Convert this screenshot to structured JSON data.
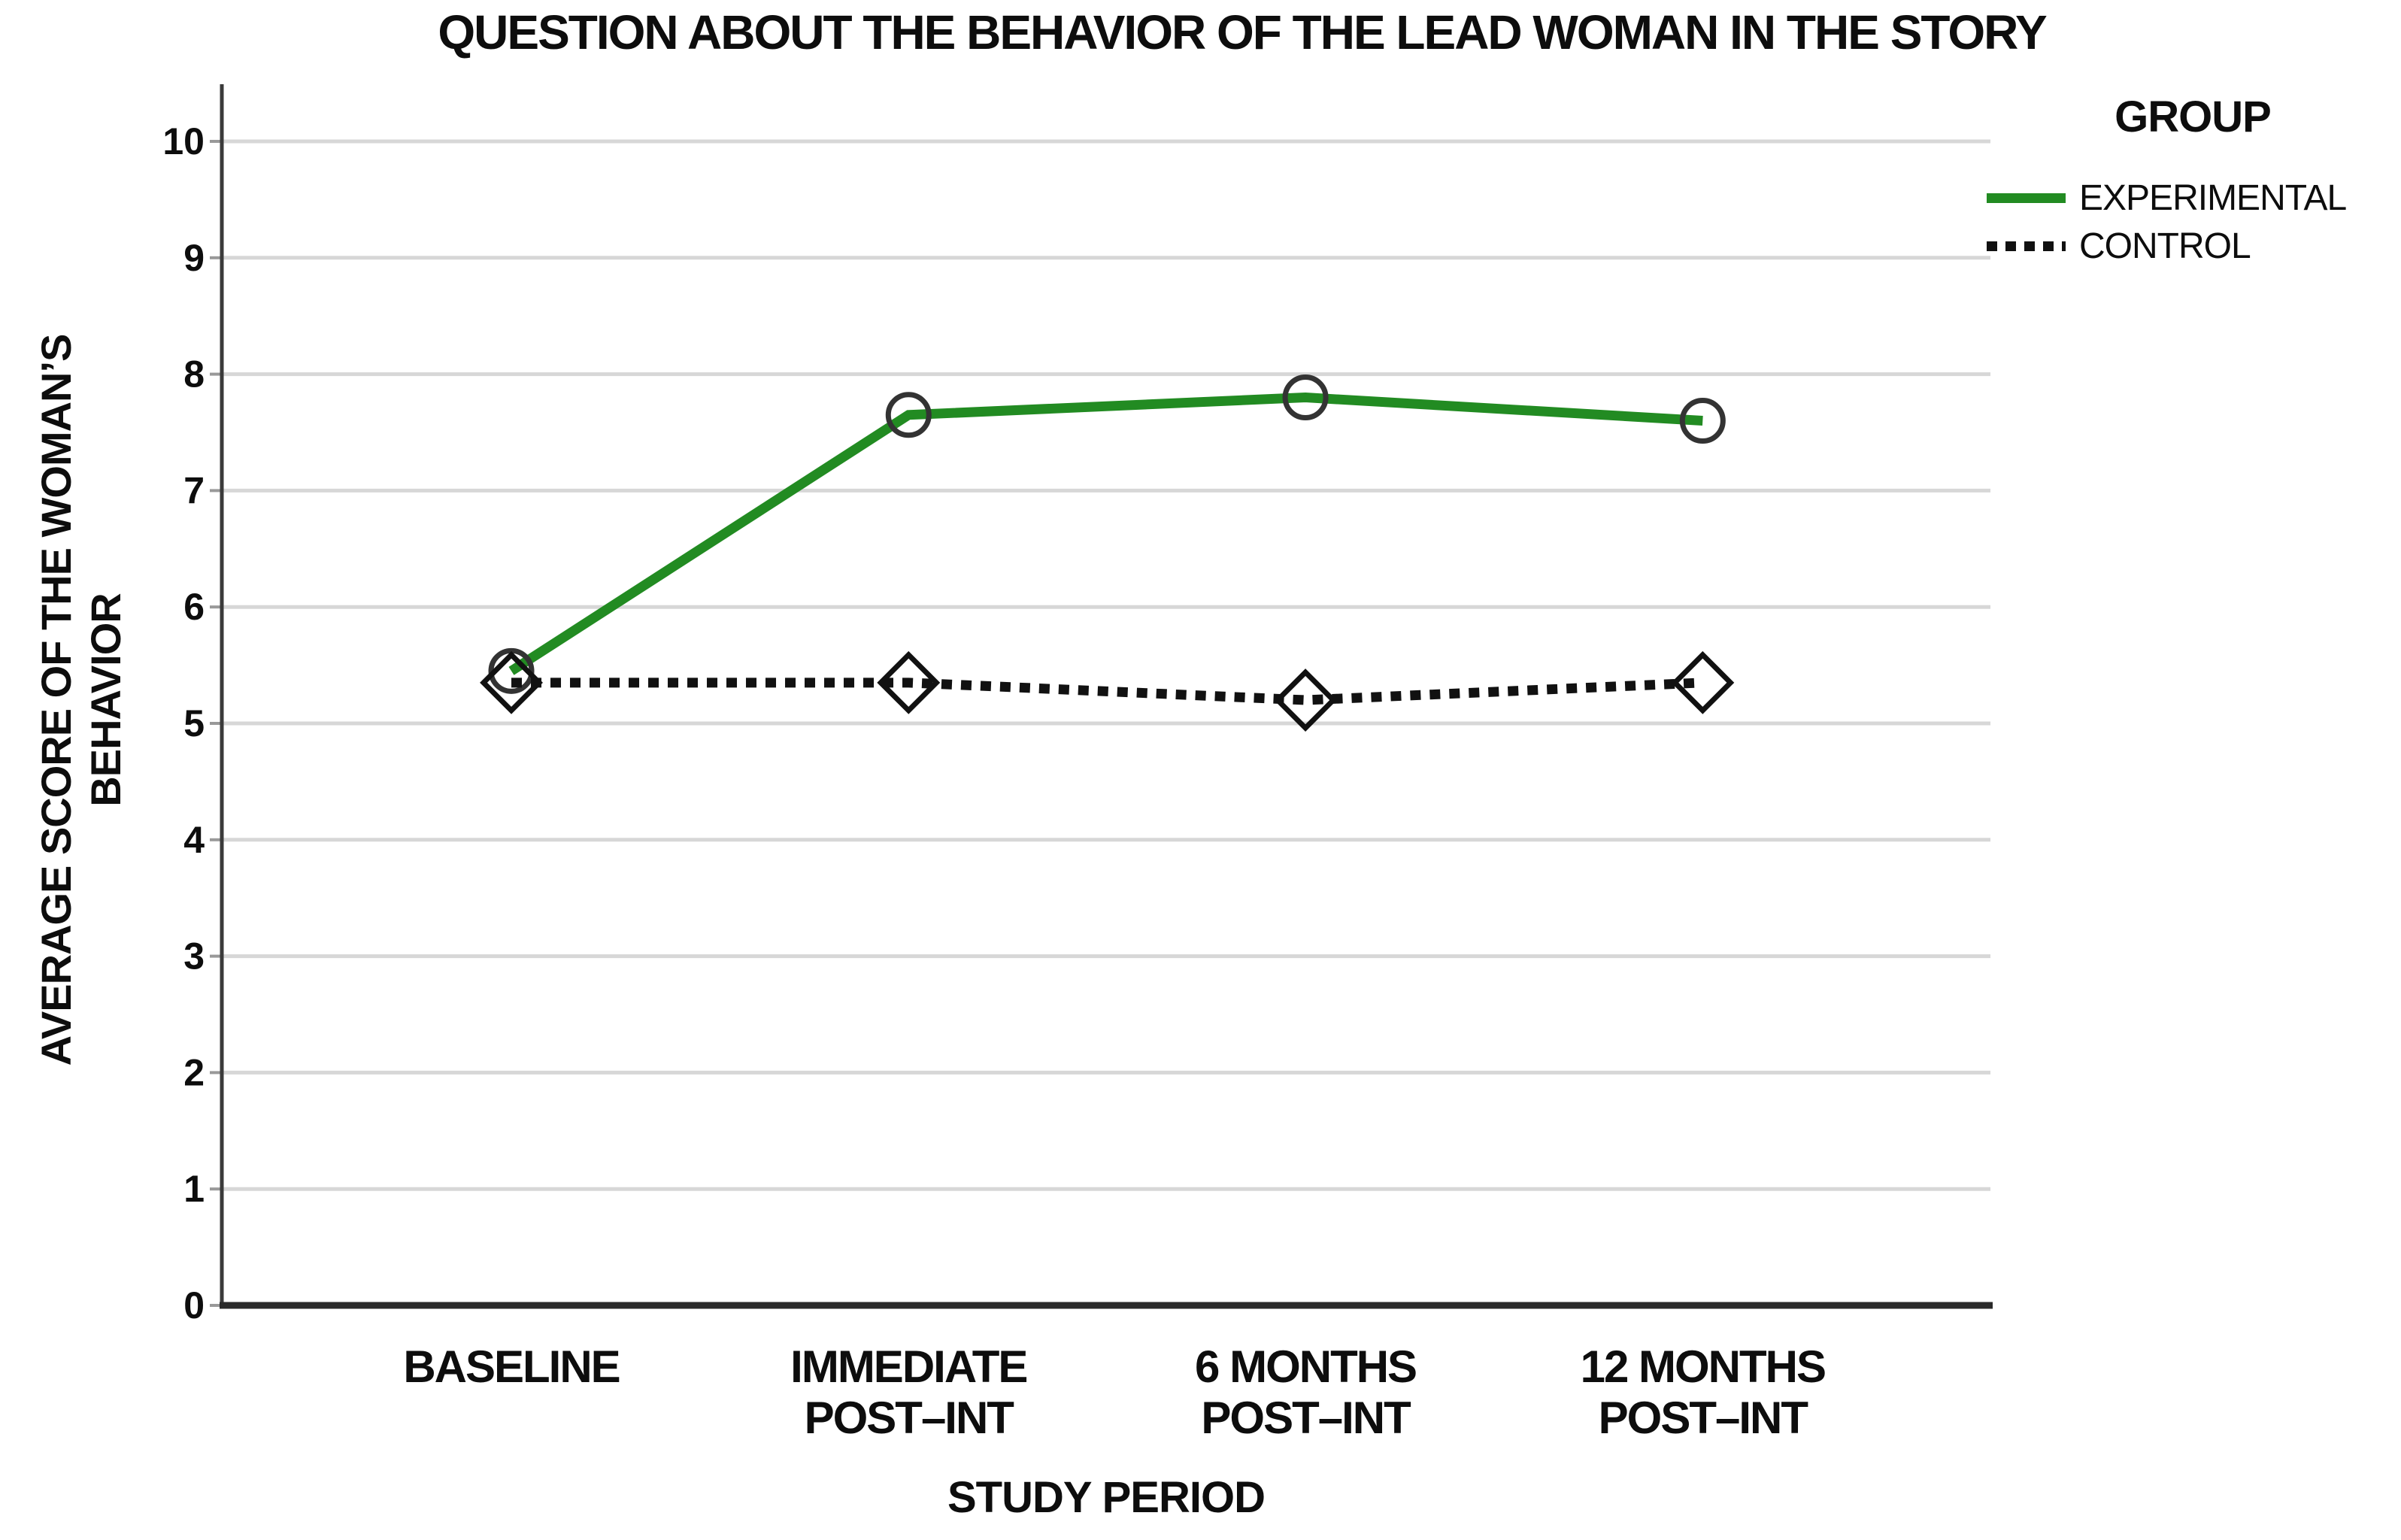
{
  "title": "QUESTION ABOUT THE BEHAVIOR OF THE LEAD WOMAN IN THE STORY",
  "axes": {
    "x_title": "STUDY PERIOD",
    "y_title_lines": [
      "AVERAGE SCORE OF THE WOMAN’S",
      "BEHAVIOR"
    ]
  },
  "legend": {
    "title": "GROUP",
    "items": [
      {
        "label": "EXPERIMENTAL",
        "color": "#228B22",
        "style": "solid"
      },
      {
        "label": "CONTROL",
        "color": "#111111",
        "style": "dotted"
      }
    ]
  },
  "chart_data": {
    "type": "line",
    "title": "QUESTION ABOUT THE BEHAVIOR OF THE LEAD WOMAN IN THE STORY",
    "xlabel": "STUDY PERIOD",
    "ylabel": "AVERAGE SCORE OF THE WOMAN'S BEHAVIOR",
    "categories": [
      [
        "BASELINE",
        ""
      ],
      [
        "IMMEDIATE",
        "POST–INT"
      ],
      [
        "6 MONTHS",
        "POST–INT"
      ],
      [
        "12 MONTHS",
        "POST–INT"
      ]
    ],
    "yticks": [
      0,
      1,
      2,
      3,
      4,
      5,
      6,
      7,
      8,
      9,
      10
    ],
    "ylim": [
      0,
      10
    ],
    "grid": true,
    "legend_position": "top-right",
    "series": [
      {
        "name": "EXPERIMENTAL",
        "values": [
          5.45,
          7.65,
          7.8,
          7.6
        ],
        "color": "#228B22",
        "line": "solid",
        "marker": "circle",
        "marker_color": "#333333"
      },
      {
        "name": "CONTROL",
        "values": [
          5.35,
          5.35,
          5.2,
          5.35
        ],
        "color": "#111111",
        "line": "dotted",
        "marker": "diamond",
        "marker_color": "#111111"
      }
    ],
    "colors": {
      "gridline": "#d7d7d7",
      "axis": "#2a2a2a",
      "tick": "#999999",
      "text": "#0d0d0d"
    }
  }
}
